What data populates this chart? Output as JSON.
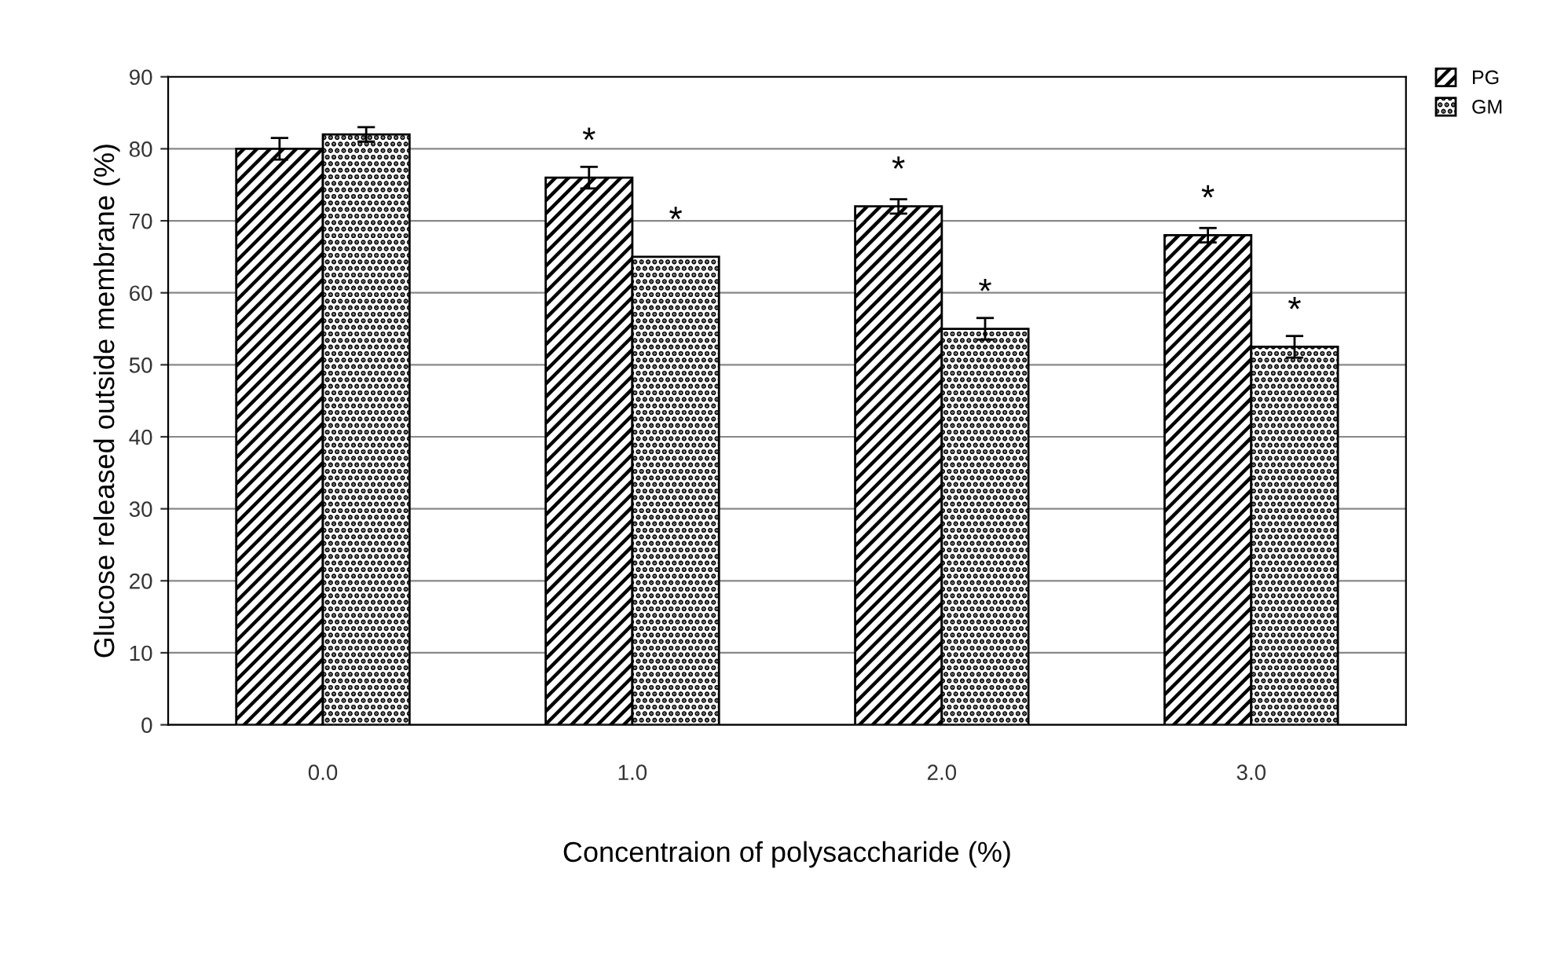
{
  "chart_data": {
    "type": "bar",
    "xlabel": "Concentraion of polysaccharide (%)",
    "ylabel": "Glucose released outside membrane (%)",
    "categories": [
      "0.0",
      "1.0",
      "2.0",
      "3.0"
    ],
    "series": [
      {
        "name": "PG",
        "color": "#000000",
        "values": [
          80,
          76,
          72,
          68
        ],
        "errors": [
          1.5,
          1.5,
          1,
          1
        ]
      },
      {
        "name": "GM",
        "color": "#000000",
        "values": [
          82,
          65,
          55,
          52.5
        ],
        "errors": [
          1,
          null,
          1.5,
          1.5
        ]
      }
    ],
    "ylim": [
      0,
      90
    ],
    "yticks": [
      0,
      10,
      20,
      30,
      40,
      50,
      60,
      70,
      80,
      90
    ],
    "grid": "y",
    "legend": "top right",
    "annotations": [
      {
        "text": "*",
        "x": "1.0",
        "y": 76
      },
      {
        "text": "*",
        "x": "2.0",
        "y": 72
      },
      {
        "text": "*",
        "x": "3.0",
        "y": 68
      },
      {
        "text": "*",
        "x": "1.0",
        "y": 65
      },
      {
        "text": "*",
        "x": "2.0",
        "y": 55
      },
      {
        "text": "*",
        "x": "3.0",
        "y": 52.5
      }
    ]
  }
}
